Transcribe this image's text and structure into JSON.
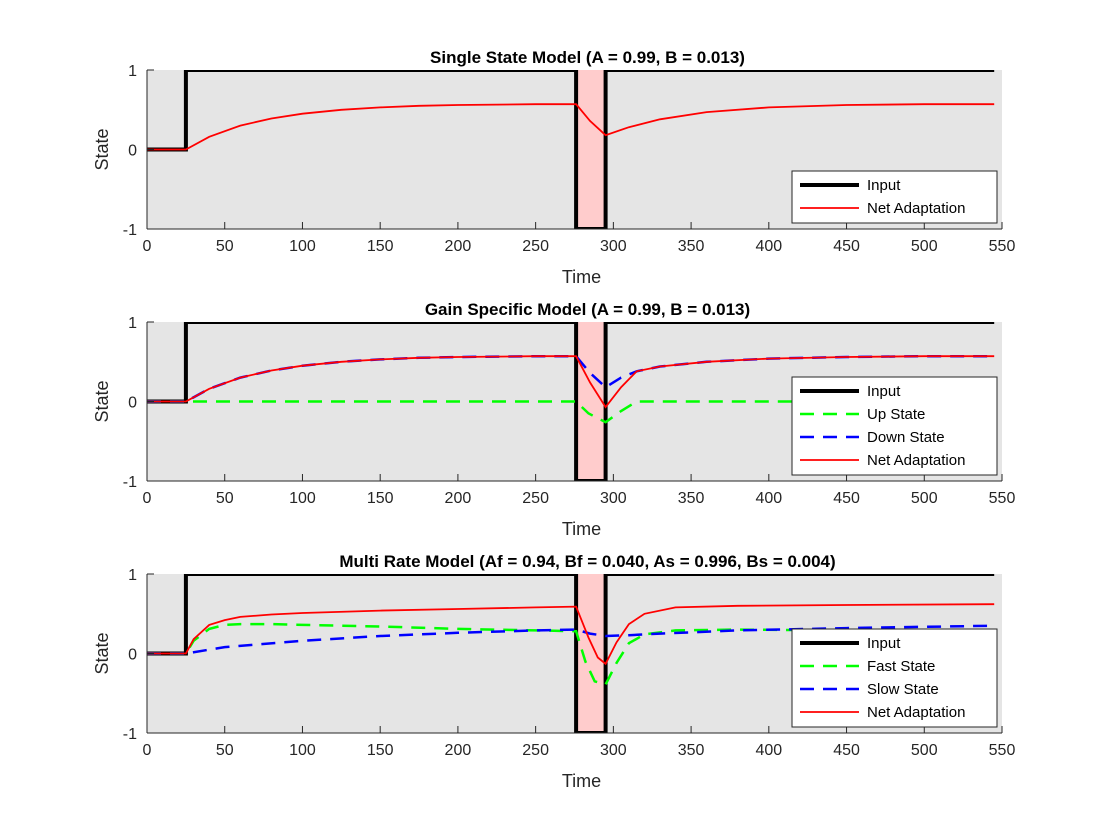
{
  "chart_data": [
    {
      "type": "line",
      "title": "Single State Model (A = 0.99, B = 0.013)",
      "xlabel": "Time",
      "ylabel": "State",
      "xlim": [
        0,
        550
      ],
      "ylim": [
        -1,
        1
      ],
      "xticks": [
        "0",
        "50",
        "100",
        "150",
        "200",
        "250",
        "300",
        "350",
        "400",
        "450",
        "500",
        "550"
      ],
      "yticks": [
        "-1",
        "0",
        "1"
      ],
      "grid": false,
      "background": "#e5e5e5",
      "shaded_interval": {
        "x": [
          276,
          295
        ],
        "color": "#ffcccc"
      },
      "legend_position": "bottom-right",
      "series": [
        {
          "name": "Input",
          "color": "#000000",
          "style": "solid",
          "x": [
            0,
            25,
            25,
            276,
            276,
            295,
            295,
            545
          ],
          "y": [
            0,
            0,
            1,
            1,
            -1,
            -1,
            1,
            1
          ]
        },
        {
          "name": "Net Adaptation",
          "color": "#ff0000",
          "style": "solid",
          "x": [
            0,
            25,
            40,
            60,
            80,
            100,
            125,
            150,
            175,
            200,
            225,
            250,
            276,
            285,
            295,
            310,
            330,
            360,
            400,
            450,
            500,
            545
          ],
          "y": [
            0,
            0,
            0.16,
            0.3,
            0.39,
            0.45,
            0.5,
            0.53,
            0.55,
            0.56,
            0.565,
            0.57,
            0.57,
            0.36,
            0.18,
            0.28,
            0.38,
            0.47,
            0.53,
            0.56,
            0.57,
            0.57
          ]
        }
      ]
    },
    {
      "type": "line",
      "title": "Gain Specific Model (A = 0.99, B = 0.013)",
      "xlabel": "Time",
      "ylabel": "State",
      "xlim": [
        0,
        550
      ],
      "ylim": [
        -1,
        1
      ],
      "xticks": [
        "0",
        "50",
        "100",
        "150",
        "200",
        "250",
        "300",
        "350",
        "400",
        "450",
        "500",
        "550"
      ],
      "yticks": [
        "-1",
        "0",
        "1"
      ],
      "grid": false,
      "background": "#e5e5e5",
      "shaded_interval": {
        "x": [
          276,
          295
        ],
        "color": "#ffcccc"
      },
      "legend_position": "bottom-right",
      "series": [
        {
          "name": "Input",
          "color": "#000000",
          "style": "solid",
          "x": [
            0,
            25,
            25,
            276,
            276,
            295,
            295,
            545
          ],
          "y": [
            0,
            0,
            1,
            1,
            -1,
            -1,
            1,
            1
          ]
        },
        {
          "name": "Up State",
          "color": "#00ff00",
          "style": "dashed",
          "x": [
            0,
            25,
            276,
            284,
            295,
            305,
            315,
            545
          ],
          "y": [
            0,
            0,
            0,
            -0.15,
            -0.26,
            -0.12,
            0,
            0
          ]
        },
        {
          "name": "Down State",
          "color": "#0000ff",
          "style": "dashed",
          "x": [
            0,
            25,
            40,
            60,
            80,
            100,
            125,
            150,
            175,
            200,
            225,
            250,
            276,
            285,
            295,
            305,
            315,
            330,
            360,
            400,
            450,
            500,
            545
          ],
          "y": [
            0,
            0,
            0.16,
            0.3,
            0.39,
            0.45,
            0.5,
            0.53,
            0.55,
            0.56,
            0.565,
            0.57,
            0.57,
            0.36,
            0.18,
            0.3,
            0.38,
            0.44,
            0.5,
            0.54,
            0.56,
            0.57,
            0.57
          ]
        },
        {
          "name": "Net Adaptation",
          "color": "#ff0000",
          "style": "solid",
          "x": [
            0,
            25,
            40,
            60,
            80,
            100,
            125,
            150,
            175,
            200,
            225,
            250,
            276,
            285,
            295,
            305,
            315,
            330,
            360,
            400,
            450,
            500,
            545
          ],
          "y": [
            0,
            0,
            0.16,
            0.3,
            0.39,
            0.45,
            0.5,
            0.53,
            0.55,
            0.56,
            0.565,
            0.57,
            0.57,
            0.24,
            -0.07,
            0.18,
            0.38,
            0.44,
            0.5,
            0.54,
            0.56,
            0.57,
            0.57
          ]
        }
      ]
    },
    {
      "type": "line",
      "title": "Multi Rate Model (Af = 0.94, Bf = 0.040, As = 0.996, Bs = 0.004)",
      "xlabel": "Time",
      "ylabel": "State",
      "xlim": [
        0,
        550
      ],
      "ylim": [
        -1,
        1
      ],
      "xticks": [
        "0",
        "50",
        "100",
        "150",
        "200",
        "250",
        "300",
        "350",
        "400",
        "450",
        "500",
        "550"
      ],
      "yticks": [
        "-1",
        "0",
        "1"
      ],
      "grid": false,
      "background": "#e5e5e5",
      "shaded_interval": {
        "x": [
          276,
          295
        ],
        "color": "#ffcccc"
      },
      "legend_position": "bottom-right",
      "series": [
        {
          "name": "Input",
          "color": "#000000",
          "style": "solid",
          "x": [
            0,
            25,
            25,
            276,
            276,
            295,
            295,
            545
          ],
          "y": [
            0,
            0,
            1,
            1,
            -1,
            -1,
            1,
            1
          ]
        },
        {
          "name": "Fast State",
          "color": "#00ff00",
          "style": "dashed",
          "x": [
            0,
            25,
            30,
            40,
            50,
            60,
            80,
            100,
            150,
            200,
            250,
            276,
            282,
            288,
            295,
            302,
            310,
            320,
            340,
            380,
            450,
            545
          ],
          "y": [
            0,
            0,
            0.16,
            0.31,
            0.36,
            0.37,
            0.37,
            0.36,
            0.34,
            0.31,
            0.29,
            0.28,
            -0.1,
            -0.35,
            -0.39,
            -0.12,
            0.13,
            0.24,
            0.29,
            0.3,
            0.29,
            0.27
          ]
        },
        {
          "name": "Slow State",
          "color": "#0000ff",
          "style": "dashed",
          "x": [
            0,
            25,
            50,
            100,
            150,
            200,
            250,
            276,
            285,
            295,
            310,
            330,
            380,
            450,
            545
          ],
          "y": [
            0,
            0,
            0.08,
            0.16,
            0.22,
            0.26,
            0.29,
            0.3,
            0.25,
            0.22,
            0.23,
            0.25,
            0.29,
            0.32,
            0.35
          ]
        },
        {
          "name": "Net Adaptation",
          "color": "#ff0000",
          "style": "solid",
          "x": [
            0,
            25,
            30,
            40,
            50,
            60,
            80,
            100,
            150,
            200,
            250,
            276,
            284,
            290,
            295,
            302,
            310,
            320,
            340,
            380,
            450,
            545
          ],
          "y": [
            0,
            0,
            0.18,
            0.36,
            0.42,
            0.46,
            0.49,
            0.51,
            0.54,
            0.56,
            0.58,
            0.59,
            0.2,
            -0.05,
            -0.13,
            0.14,
            0.37,
            0.5,
            0.58,
            0.6,
            0.61,
            0.62
          ]
        }
      ]
    }
  ]
}
